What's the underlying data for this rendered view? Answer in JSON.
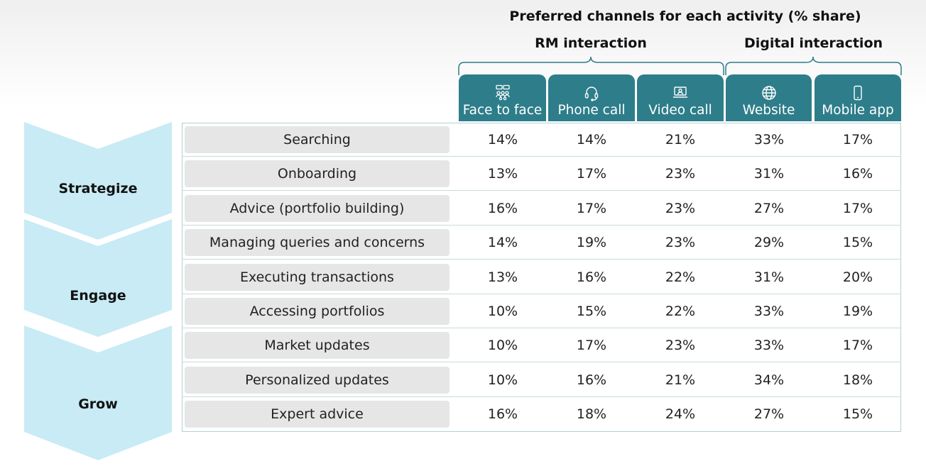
{
  "chart_data": {
    "type": "table",
    "title": "Preferred channels for each activity (% share)",
    "groups": [
      {
        "name": "RM interaction",
        "columns": [
          "Face to face",
          "Phone call",
          "Video call"
        ]
      },
      {
        "name": "Digital interaction",
        "columns": [
          "Website",
          "Mobile app"
        ]
      }
    ],
    "columns": [
      {
        "label": "Face to face",
        "icon": "people-meeting-icon"
      },
      {
        "label": "Phone call",
        "icon": "headset-icon"
      },
      {
        "label": "Video call",
        "icon": "laptop-video-icon"
      },
      {
        "label": "Website",
        "icon": "globe-icon"
      },
      {
        "label": "Mobile app",
        "icon": "smartphone-icon"
      }
    ],
    "stages": [
      {
        "label": "Strategize"
      },
      {
        "label": "Engage"
      },
      {
        "label": "Grow"
      }
    ],
    "rows": [
      {
        "activity": "Searching",
        "values": [
          "14%",
          "14%",
          "21%",
          "33%",
          "17%"
        ]
      },
      {
        "activity": "Onboarding",
        "values": [
          "13%",
          "17%",
          "23%",
          "31%",
          "16%"
        ]
      },
      {
        "activity": "Advice (portfolio building)",
        "values": [
          "16%",
          "17%",
          "23%",
          "27%",
          "17%"
        ]
      },
      {
        "activity": "Managing queries and concerns",
        "values": [
          "14%",
          "19%",
          "23%",
          "29%",
          "15%"
        ]
      },
      {
        "activity": "Executing transactions",
        "values": [
          "13%",
          "16%",
          "22%",
          "31%",
          "20%"
        ]
      },
      {
        "activity": "Accessing portfolios",
        "values": [
          "10%",
          "15%",
          "22%",
          "33%",
          "19%"
        ]
      },
      {
        "activity": "Market updates",
        "values": [
          "10%",
          "17%",
          "23%",
          "33%",
          "17%"
        ]
      },
      {
        "activity": "Personalized updates",
        "values": [
          "10%",
          "16%",
          "21%",
          "34%",
          "18%"
        ]
      },
      {
        "activity": "Expert advice",
        "values": [
          "16%",
          "18%",
          "24%",
          "27%",
          "15%"
        ]
      }
    ]
  },
  "colors": {
    "header_teal": "#2e7d8a",
    "chevron_blue": "#c8ebf5",
    "activity_bg": "#e6e6e6"
  }
}
